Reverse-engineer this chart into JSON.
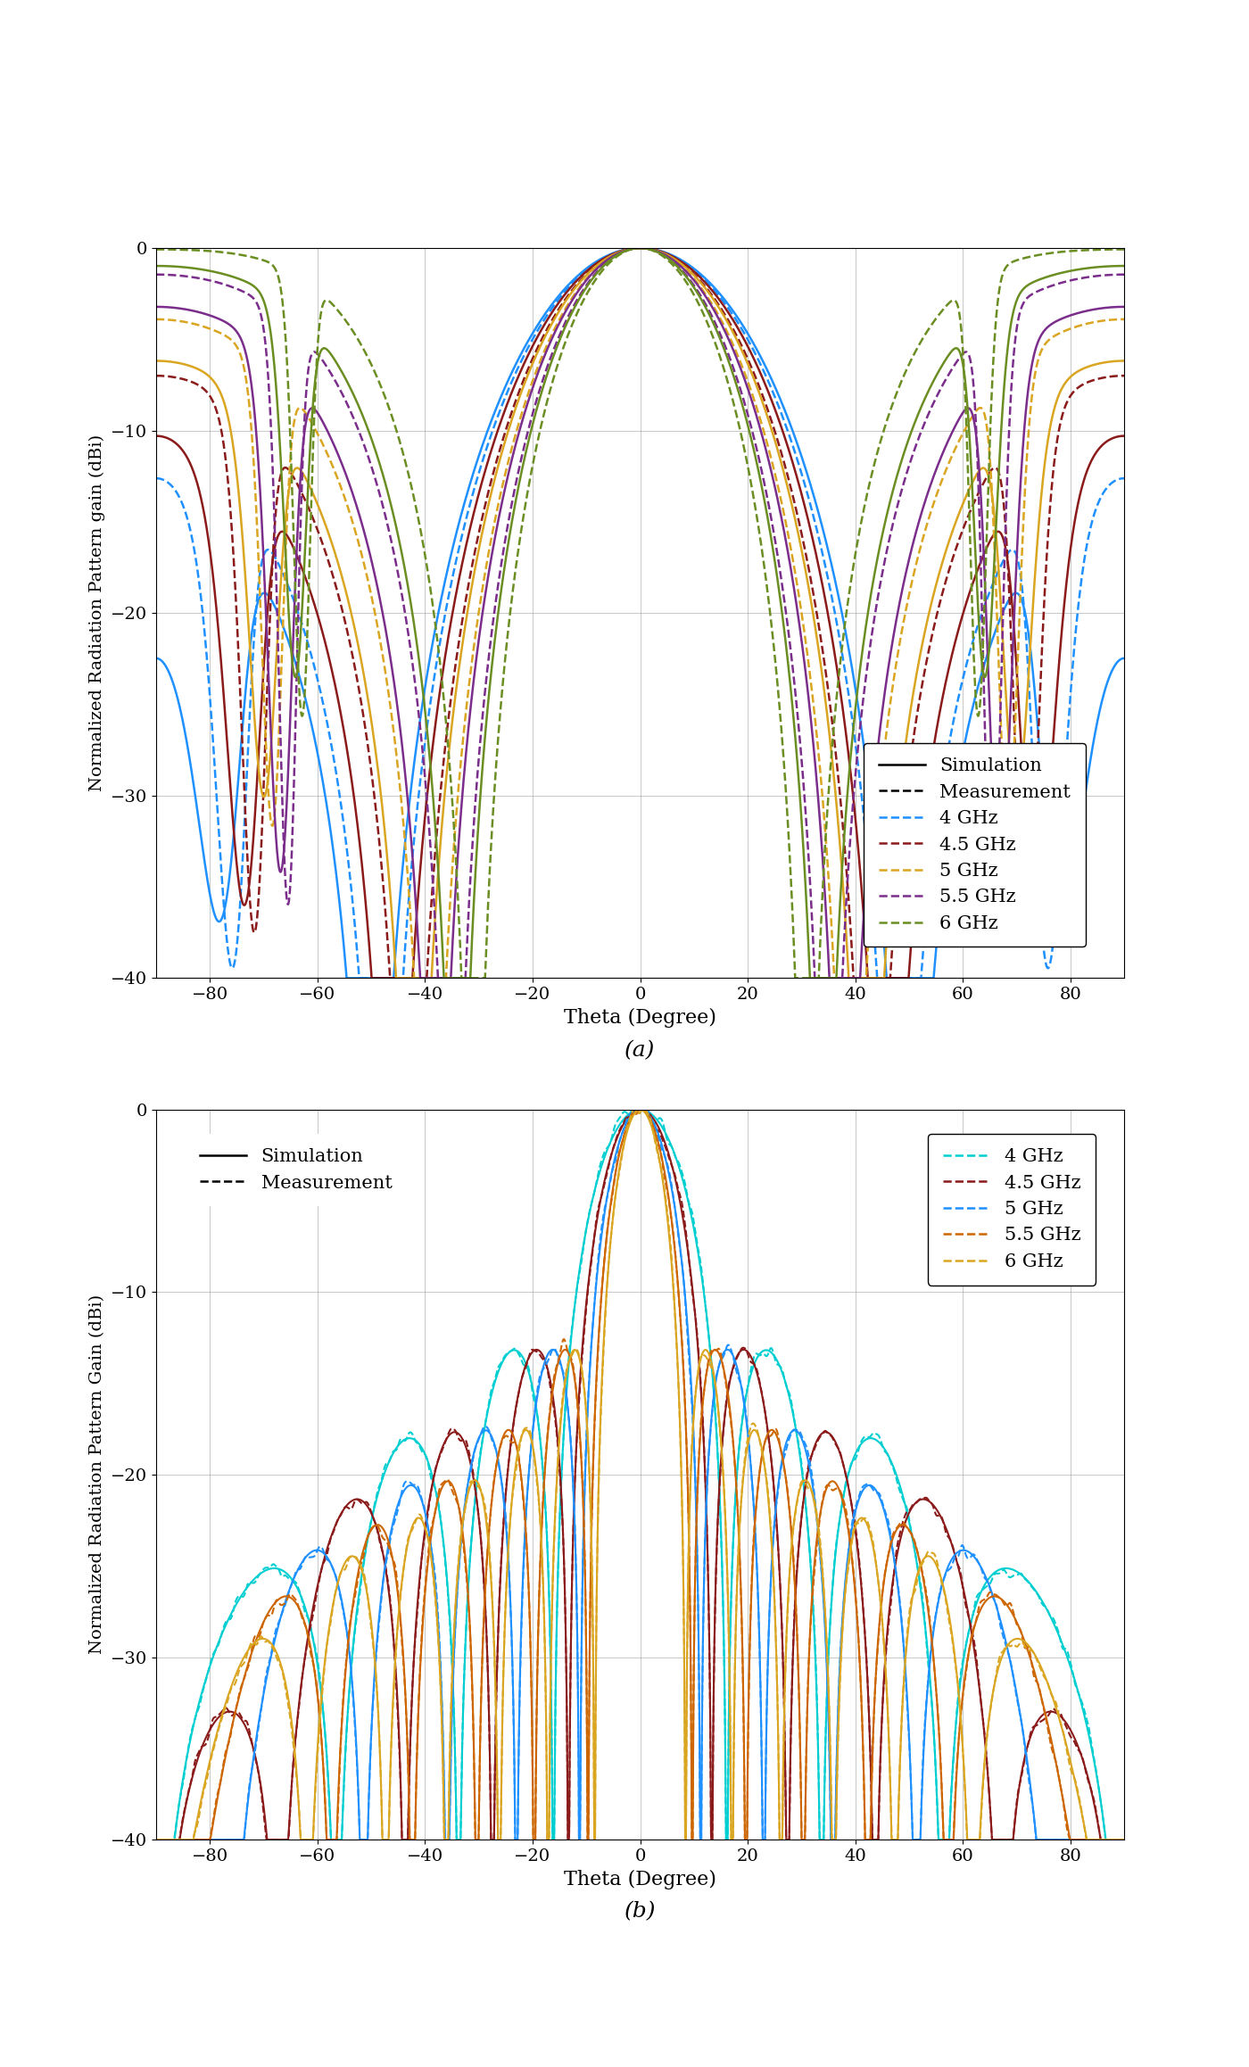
{
  "colors_a": {
    "4GHz": "#1E90FF",
    "4.5GHz": "#8B1A1A",
    "5GHz": "#DAA520",
    "5.5GHz": "#7B2D8B",
    "6GHz": "#6B8E23"
  },
  "colors_b": {
    "4GHz": "#00CED1",
    "4.5GHz": "#8B1A1A",
    "5GHz": "#1E90FF",
    "5.5GHz": "#CD6600",
    "6GHz": "#DAA520"
  },
  "freq_labels": [
    "4 GHz",
    "4.5 GHz",
    "5 GHz",
    "5.5 GHz",
    "6 GHz"
  ],
  "ylim": [
    -40,
    0
  ],
  "xlim": [
    -90,
    90
  ],
  "ylabel_a": "Normalized Radiation Pattern gain (dBi)",
  "ylabel_b": "Normalized Radiation Pattern Gain (dBi)",
  "xlabel": "Theta (Degree)",
  "label_a": "(a)",
  "label_b": "(b)",
  "legend_sim": "Simulation",
  "legend_meas": "Measurement",
  "yticks": [
    0,
    -10,
    -20,
    -30,
    -40
  ],
  "xticks": [
    -80,
    -60,
    -40,
    -20,
    0,
    20,
    40,
    60,
    80
  ]
}
